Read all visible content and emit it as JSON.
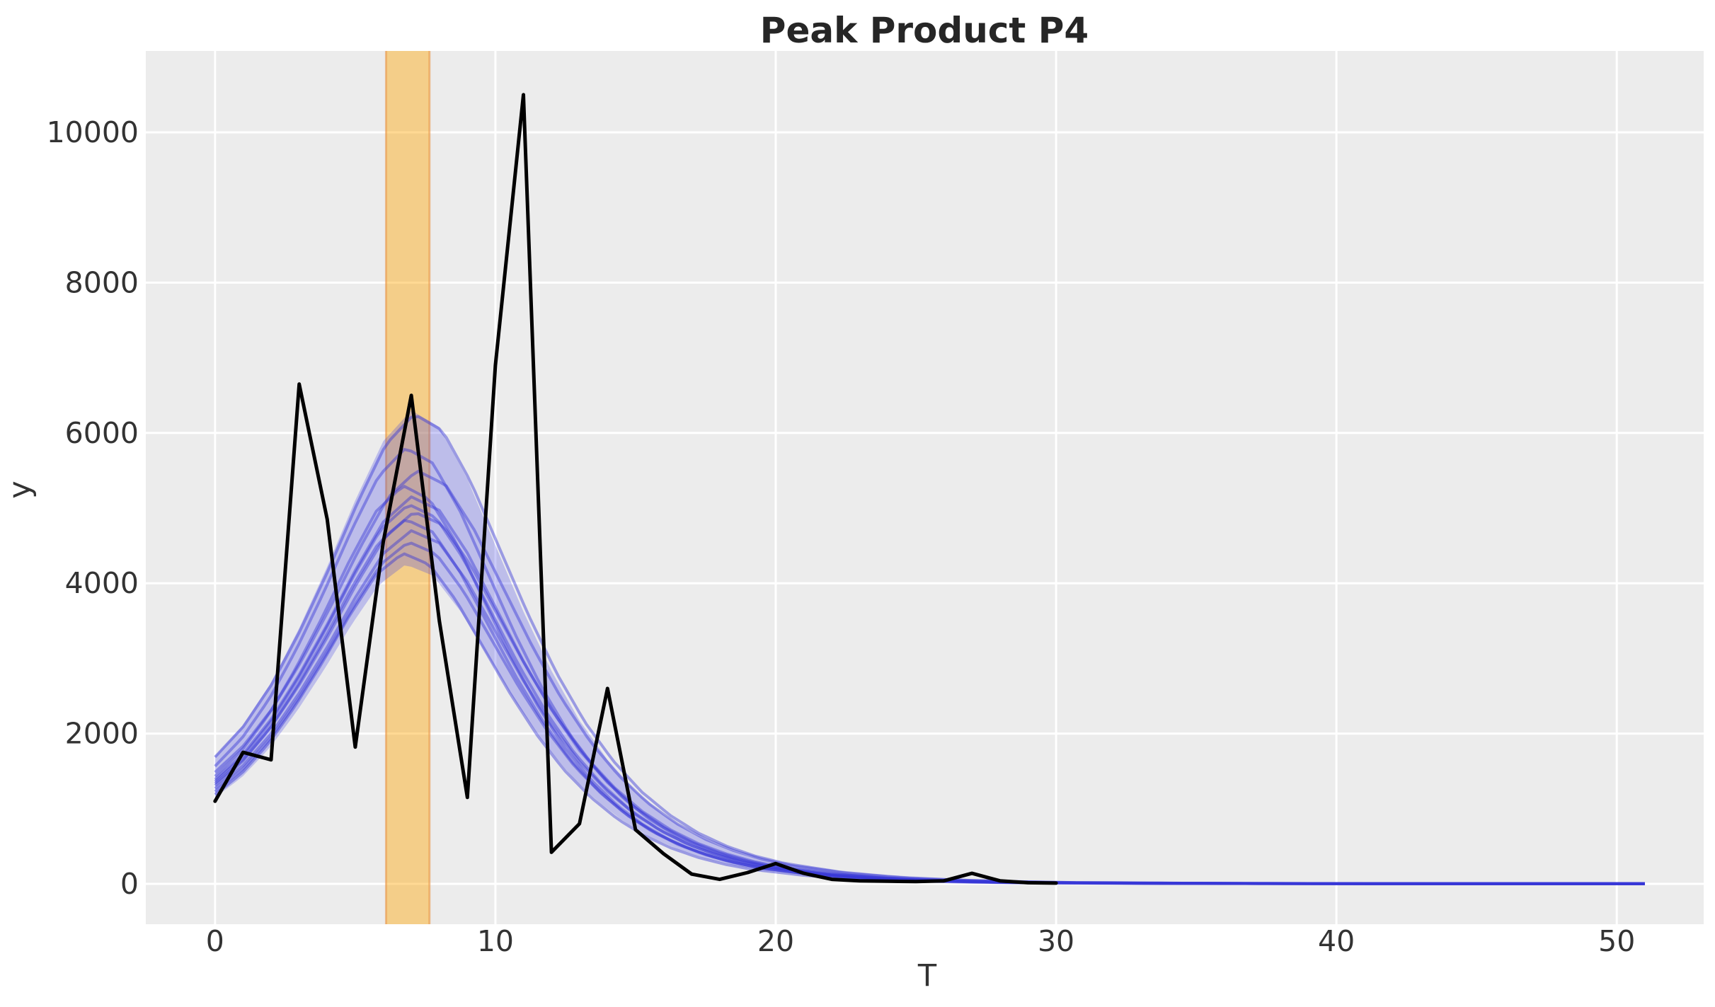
{
  "title": "Peak Product P4",
  "x_axis": {
    "label": "T",
    "tick_labels": [
      "0",
      "10",
      "20",
      "30",
      "40",
      "50"
    ],
    "tick_values": [
      0,
      10,
      20,
      30,
      40,
      50
    ],
    "min": -2.47,
    "max": 53.1
  },
  "y_axis": {
    "label": "y",
    "tick_labels": [
      "0",
      "2000",
      "4000",
      "6000",
      "8000",
      "10000"
    ],
    "tick_values": [
      0,
      2000,
      4000,
      6000,
      8000,
      10000
    ],
    "min": -537,
    "max": 11083
  },
  "colors": {
    "figure_bg": "#ffffff",
    "plot_bg": "#ECECEC",
    "grid": "#FFFFFF",
    "observed": "#000000",
    "sim_stroke": "#3737D7",
    "sim_alpha": 0.45,
    "envelope_fill": "#4646E6",
    "envelope_alpha": 0.28,
    "band_fill": "#FFA500",
    "band_alpha": 0.42,
    "band_edge": "#E8903E",
    "band_edge_alpha": 0.55,
    "title_text": "#262626",
    "label_text": "#333333"
  },
  "chart_data": {
    "type": "line",
    "title": "Peak Product P4",
    "xlabel": "T",
    "ylabel": "y",
    "xlim": [
      -2.47,
      53.1
    ],
    "ylim": [
      -537,
      11083
    ],
    "grid": true,
    "legend": "none",
    "highlight_band": {
      "t_start": 6.1,
      "t_end": 7.65
    },
    "observed_series": {
      "name": "observed-data",
      "x": [
        0,
        1,
        2,
        3,
        4,
        5,
        6,
        7,
        8,
        9,
        10,
        11,
        12,
        13,
        14,
        15,
        16,
        17,
        18,
        19,
        20,
        21,
        22,
        23,
        24,
        25,
        26,
        27,
        28,
        29,
        30
      ],
      "y": [
        1100,
        1750,
        1650,
        6650,
        4850,
        1820,
        4550,
        6500,
        3500,
        1150,
        6900,
        10500,
        420,
        800,
        2600,
        720,
        400,
        130,
        60,
        150,
        270,
        140,
        60,
        40,
        35,
        30,
        40,
        140,
        40,
        15,
        10
      ]
    },
    "simulation_ensemble": {
      "name": "posterior-simulation-curves",
      "t_end": 51,
      "shape_t": [
        0,
        1,
        2,
        3,
        4,
        5,
        6,
        7,
        8,
        9,
        10,
        11,
        12,
        13,
        14,
        15,
        16,
        17,
        18,
        19,
        20,
        22,
        24,
        26,
        28,
        30,
        34,
        38,
        44,
        51,
        60
      ],
      "shape_s": [
        0.27,
        0.335,
        0.425,
        0.54,
        0.67,
        0.81,
        0.935,
        1.0,
        0.965,
        0.855,
        0.715,
        0.575,
        0.45,
        0.345,
        0.262,
        0.196,
        0.146,
        0.108,
        0.08,
        0.059,
        0.044,
        0.025,
        0.014,
        0.0085,
        0.005,
        0.003,
        0.0015,
        0.0008,
        0.0004,
        0.0003,
        0.00025
      ],
      "curves": [
        {
          "amp": 6250,
          "peak": 7.1
        },
        {
          "amp": 5800,
          "peak": 6.8
        },
        {
          "amp": 5500,
          "peak": 7.2
        },
        {
          "amp": 5300,
          "peak": 6.7
        },
        {
          "amp": 5150,
          "peak": 7.0
        },
        {
          "amp": 5050,
          "peak": 6.9
        },
        {
          "amp": 4950,
          "peak": 7.1
        },
        {
          "amp": 4850,
          "peak": 6.8
        },
        {
          "amp": 4700,
          "peak": 7.0
        },
        {
          "amp": 4550,
          "peak": 6.9
        },
        {
          "amp": 4400,
          "peak": 6.7
        }
      ],
      "envelope": {
        "top": {
          "amp": 6300,
          "peak": 7.0
        },
        "bottom": {
          "amp": 4250,
          "peak": 6.8
        }
      }
    }
  }
}
